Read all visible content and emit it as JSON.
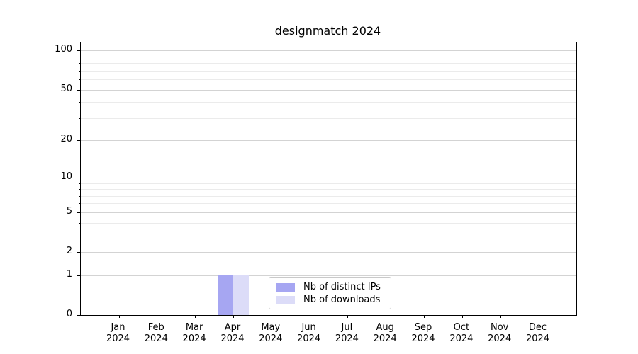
{
  "chart_data": {
    "type": "bar",
    "title": "designmatch 2024",
    "categories": [
      "Jan 2024",
      "Feb 2024",
      "Mar 2024",
      "Apr 2024",
      "May 2024",
      "Jun 2024",
      "Jul 2024",
      "Aug 2024",
      "Sep 2024",
      "Oct 2024",
      "Nov 2024",
      "Dec 2024"
    ],
    "series": [
      {
        "name": "Nb of distinct IPs",
        "color": "#a6a6f2",
        "values": [
          0,
          0,
          0,
          1,
          0,
          0,
          0,
          0,
          0,
          0,
          0,
          0
        ]
      },
      {
        "name": "Nb of downloads",
        "color": "#dcdcf8",
        "values": [
          0,
          0,
          0,
          1,
          0,
          0,
          0,
          0,
          0,
          0,
          0,
          0
        ]
      }
    ],
    "xlabel": "",
    "ylabel": "",
    "yscale": "log1p",
    "ylim": [
      0,
      115
    ],
    "y_major_ticks": [
      0,
      1,
      2,
      5,
      10,
      20,
      50,
      100
    ],
    "y_minor_ticks": [
      3,
      4,
      6,
      7,
      8,
      9,
      30,
      40,
      60,
      70,
      80,
      90
    ],
    "grid": "horizontal",
    "legend_position": "inside-bottom-center"
  },
  "colors": {
    "grid_major": "#d3d3d3",
    "grid_minor": "#ebebeb",
    "spine": "#000000",
    "text": "#000000",
    "legend_border": "#c9c9c9"
  }
}
